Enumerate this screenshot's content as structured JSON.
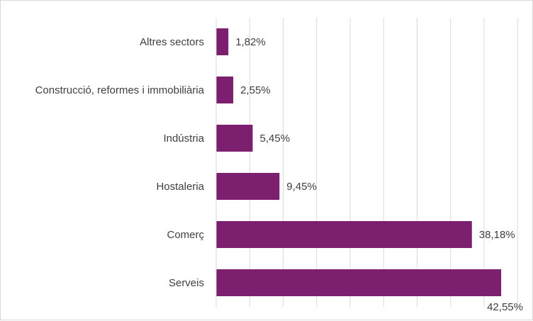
{
  "chart_data": {
    "type": "bar",
    "orientation": "horizontal",
    "title": "",
    "xlabel": "",
    "ylabel": "",
    "categories": [
      "Altres sectors",
      "Construcció, reformes i immobiliària",
      "Indústria",
      "Hostaleria",
      "Comerç",
      "Serveis"
    ],
    "values": [
      1.82,
      2.55,
      5.45,
      9.45,
      38.18,
      42.55
    ],
    "value_labels": [
      "1,82%",
      "2,55%",
      "5,45%",
      "9,45%",
      "38,18%",
      "42,55%"
    ],
    "xlim": [
      0,
      45
    ],
    "x_gridline_step": 5,
    "grid": true,
    "legend": "none",
    "bar_color": "#7b1f6e"
  }
}
